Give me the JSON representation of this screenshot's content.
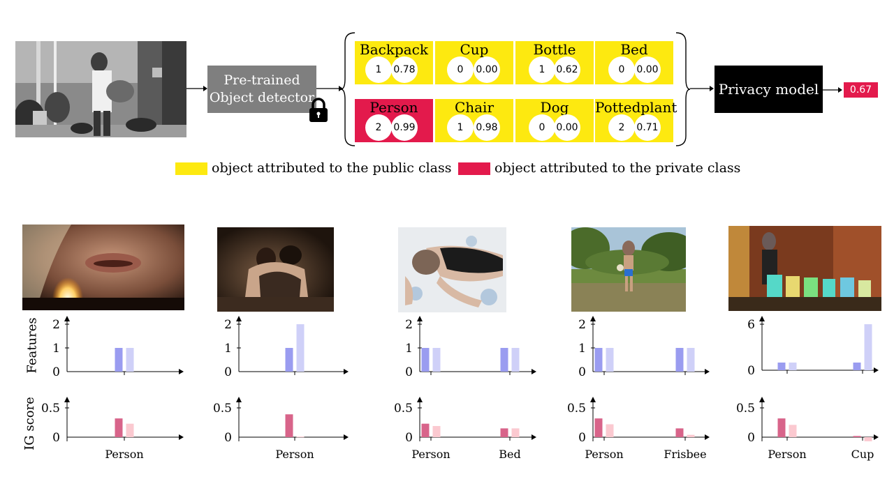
{
  "pipeline": {
    "detector_label_line1": "Pre-trained",
    "detector_label_line2": "Object detector",
    "privacy_model_label": "Privacy model",
    "output_score": "0.67"
  },
  "objects": [
    {
      "name": "Backpack",
      "count": "1",
      "confidence": "0.78",
      "attribution": "public"
    },
    {
      "name": "Cup",
      "count": "0",
      "confidence": "0.00",
      "attribution": "public"
    },
    {
      "name": "Bottle",
      "count": "1",
      "confidence": "0.62",
      "attribution": "public"
    },
    {
      "name": "Bed",
      "count": "0",
      "confidence": "0.00",
      "attribution": "public"
    },
    {
      "name": "Person",
      "count": "2",
      "confidence": "0.99",
      "attribution": "private"
    },
    {
      "name": "Chair",
      "count": "1",
      "confidence": "0.98",
      "attribution": "public"
    },
    {
      "name": "Dog",
      "count": "0",
      "confidence": "0.00",
      "attribution": "public"
    },
    {
      "name": "Pottedplant",
      "count": "2",
      "confidence": "0.71",
      "attribution": "public"
    }
  ],
  "legend": {
    "public": "object attributed to the public class",
    "private": "object attributed to the private class"
  },
  "colors": {
    "public": "#fde910",
    "private": "#e31a4c",
    "feature_dark": "#9a9cf0",
    "feature_light": "#cfd0f8",
    "ig_dark": "#d8648a",
    "ig_light": "#fbc9d0"
  },
  "axis_labels": {
    "features": "Features",
    "ig_score": "IG score"
  },
  "chart_data": [
    {
      "type": "bar",
      "panel": 1,
      "features": {
        "yticks": [
          "0",
          "1",
          "2"
        ],
        "ylim": [
          0,
          2
        ],
        "categories": [
          "Person"
        ],
        "dark": [
          1
        ],
        "light": [
          1
        ]
      },
      "ig": {
        "yticks": [
          "0",
          "0.5"
        ],
        "ylim": [
          0,
          0.5
        ],
        "categories": [
          "Person"
        ],
        "dark": [
          0.32
        ],
        "light": [
          0.23
        ]
      }
    },
    {
      "type": "bar",
      "panel": 2,
      "features": {
        "yticks": [
          "0",
          "1",
          "2"
        ],
        "ylim": [
          0,
          2
        ],
        "categories": [
          "Person"
        ],
        "dark": [
          1
        ],
        "light": [
          2
        ]
      },
      "ig": {
        "yticks": [
          "0",
          "0.5"
        ],
        "ylim": [
          0,
          0.5
        ],
        "categories": [
          "Person"
        ],
        "dark": [
          0.39
        ],
        "light": [
          0.01
        ]
      }
    },
    {
      "type": "bar",
      "panel": 3,
      "features": {
        "yticks": [
          "0",
          "1",
          "2"
        ],
        "ylim": [
          0,
          2
        ],
        "categories": [
          "Person",
          "Bed"
        ],
        "dark": [
          1,
          1
        ],
        "light": [
          1,
          1
        ]
      },
      "ig": {
        "yticks": [
          "0",
          "0.5"
        ],
        "ylim": [
          0,
          0.5
        ],
        "categories": [
          "Person",
          "Bed"
        ],
        "dark": [
          0.23,
          0.15
        ],
        "light": [
          0.19,
          0.15
        ]
      }
    },
    {
      "type": "bar",
      "panel": 4,
      "features": {
        "yticks": [
          "0",
          "1",
          "2"
        ],
        "ylim": [
          0,
          2
        ],
        "categories": [
          "Person",
          "Frisbee"
        ],
        "dark": [
          1,
          1
        ],
        "light": [
          1,
          1
        ]
      },
      "ig": {
        "yticks": [
          "0",
          "0.5"
        ],
        "ylim": [
          0,
          0.5
        ],
        "categories": [
          "Person",
          "Frisbee"
        ],
        "dark": [
          0.32,
          0.15
        ],
        "light": [
          0.22,
          0.04
        ]
      }
    },
    {
      "type": "bar",
      "panel": 5,
      "features": {
        "yticks": [
          "0",
          "6"
        ],
        "ylim": [
          0,
          6
        ],
        "categories": [
          "Person",
          "Cup"
        ],
        "dark": [
          1,
          1
        ],
        "light": [
          1,
          6
        ]
      },
      "ig": {
        "yticks": [
          "0",
          "0.5"
        ],
        "ylim": [
          0,
          0.5
        ],
        "categories": [
          "Person",
          "Cup"
        ],
        "dark": [
          0.32,
          0.02
        ],
        "light": [
          0.21,
          -0.07
        ]
      }
    }
  ]
}
